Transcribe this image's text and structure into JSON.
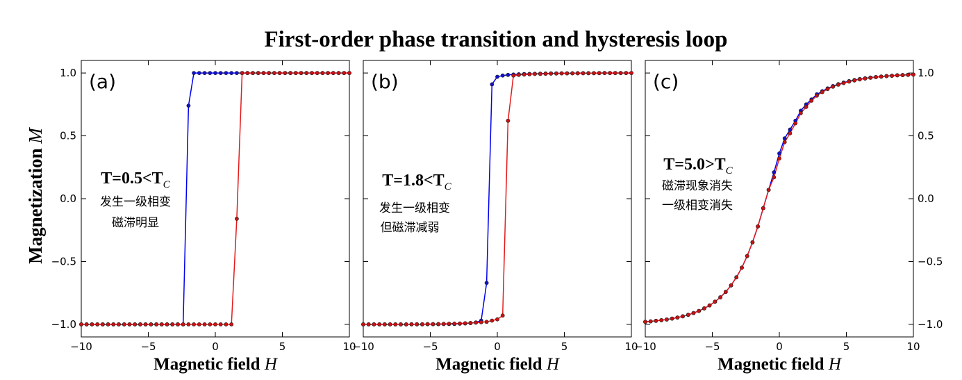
{
  "title": "First-order phase transition and hysteresis loop",
  "ylabel_text": "Magnetization ",
  "ylabel_var": "M",
  "xlabel_text": "Magnetic field ",
  "xlabel_var": "H",
  "colors": {
    "up": "#0000ee",
    "down": "#e31a1a",
    "marker_down": "#cc1111",
    "marker_up": "#1111cc"
  },
  "chart_data": [
    {
      "type": "line",
      "panel_label": "(a)",
      "temp_main": "T=0.5<T",
      "temp_sub": "C",
      "notes": [
        "发生一级相变",
        "磁滞明显"
      ],
      "xlim": [
        -10,
        10
      ],
      "ylim": [
        -1.1,
        1.1
      ],
      "xticks": [
        "−10",
        "−5",
        "0",
        "5",
        "10"
      ],
      "yticks": [
        "1.0",
        "0.5",
        "0.0",
        "−0.5",
        "−1.0"
      ],
      "ytick_side": "left",
      "series": [
        {
          "x": [
            -10,
            -9.6,
            -9.2,
            -8.8,
            -8.4,
            -8,
            -7.6,
            -7.2,
            -6.8,
            -6.4,
            -6,
            -5.6,
            -5.2,
            -4.8,
            -4.4,
            -4,
            -3.6,
            -3.2,
            -2.8,
            -2.4,
            -2,
            -1.6,
            -1.2,
            -0.8,
            -0.4,
            0,
            0.4,
            0.8,
            1.2,
            1.6,
            2,
            2.4,
            2.8,
            3.2,
            3.6,
            4,
            4.4,
            4.8,
            5.2,
            5.6,
            6,
            6.4,
            6.8,
            7.2,
            7.6,
            8,
            8.4,
            8.8,
            9.2,
            9.6,
            10
          ],
          "y": [
            -1,
            -1,
            -1,
            -1,
            -1,
            -1,
            -1,
            -1,
            -1,
            -1,
            -1,
            -1,
            -1,
            -1,
            -1,
            -1,
            -1,
            -1,
            -1,
            -1,
            0.74,
            1,
            1,
            1,
            1,
            1,
            1,
            1,
            1,
            1,
            1,
            1,
            1,
            1,
            1,
            1,
            1,
            1,
            1,
            1,
            1,
            1,
            1,
            1,
            1,
            1,
            1,
            1,
            1,
            1,
            1
          ]
        },
        {
          "x": [
            -10,
            -9.6,
            -9.2,
            -8.8,
            -8.4,
            -8,
            -7.6,
            -7.2,
            -6.8,
            -6.4,
            -6,
            -5.6,
            -5.2,
            -4.8,
            -4.4,
            -4,
            -3.6,
            -3.2,
            -2.8,
            -2.4,
            -2,
            -1.6,
            -1.2,
            -0.8,
            -0.4,
            0,
            0.4,
            0.8,
            1.2,
            1.6,
            2,
            2.4,
            2.8,
            3.2,
            3.6,
            4,
            4.4,
            4.8,
            5.2,
            5.6,
            6,
            6.4,
            6.8,
            7.2,
            7.6,
            8,
            8.4,
            8.8,
            9.2,
            9.6,
            10
          ],
          "y": [
            -1,
            -1,
            -1,
            -1,
            -1,
            -1,
            -1,
            -1,
            -1,
            -1,
            -1,
            -1,
            -1,
            -1,
            -1,
            -1,
            -1,
            -1,
            -1,
            -1,
            -1,
            -1,
            -1,
            -1,
            -1,
            -1,
            -1,
            -1,
            -1,
            -0.16,
            1,
            1,
            1,
            1,
            1,
            1,
            1,
            1,
            1,
            1,
            1,
            1,
            1,
            1,
            1,
            1,
            1,
            1,
            1,
            1,
            1
          ]
        }
      ]
    },
    {
      "type": "line",
      "panel_label": "(b)",
      "temp_main": "T=1.8<T",
      "temp_sub": "C",
      "notes": [
        "发生一级相变",
        "但磁滞减弱"
      ],
      "xlim": [
        -10,
        10
      ],
      "ylim": [
        -1.1,
        1.1
      ],
      "xticks": [
        "−10",
        "−5",
        "0",
        "5",
        "10"
      ],
      "yticks": [],
      "ytick_side": "none",
      "series": [
        {
          "x": [
            -10,
            -9.6,
            -9.2,
            -8.8,
            -8.4,
            -8,
            -7.6,
            -7.2,
            -6.8,
            -6.4,
            -6,
            -5.6,
            -5.2,
            -4.8,
            -4.4,
            -4,
            -3.6,
            -3.2,
            -2.8,
            -2.4,
            -2,
            -1.6,
            -1.2,
            -0.8,
            -0.4,
            0,
            0.4,
            0.8,
            1.2,
            1.6,
            2,
            2.4,
            2.8,
            3.2,
            3.6,
            4,
            4.4,
            4.8,
            5.2,
            5.6,
            6,
            6.4,
            6.8,
            7.2,
            7.6,
            8,
            8.4,
            8.8,
            9.2,
            9.6,
            10
          ],
          "y": [
            -1,
            -1,
            -1,
            -1,
            -1,
            -1,
            -1,
            -1,
            -1,
            -1,
            -1,
            -1,
            -0.999,
            -0.999,
            -0.999,
            -0.998,
            -0.998,
            -0.997,
            -0.995,
            -0.993,
            -0.99,
            -0.985,
            -0.97,
            -0.67,
            0.91,
            0.97,
            0.98,
            0.985,
            0.988,
            0.99,
            0.992,
            0.993,
            0.994,
            0.995,
            0.996,
            0.997,
            0.997,
            0.998,
            0.998,
            0.998,
            0.999,
            0.999,
            0.999,
            0.999,
            1,
            1,
            1,
            1,
            1,
            1,
            1
          ]
        },
        {
          "x": [
            -10,
            -9.6,
            -9.2,
            -8.8,
            -8.4,
            -8,
            -7.6,
            -7.2,
            -6.8,
            -6.4,
            -6,
            -5.6,
            -5.2,
            -4.8,
            -4.4,
            -4,
            -3.6,
            -3.2,
            -2.8,
            -2.4,
            -2,
            -1.6,
            -1.2,
            -0.8,
            -0.4,
            0,
            0.4,
            0.8,
            1.2,
            1.6,
            2,
            2.4,
            2.8,
            3.2,
            3.6,
            4,
            4.4,
            4.8,
            5.2,
            5.6,
            6,
            6.4,
            6.8,
            7.2,
            7.6,
            8,
            8.4,
            8.8,
            9.2,
            9.6,
            10
          ],
          "y": [
            -1,
            -1,
            -1,
            -1,
            -1,
            -1,
            -1,
            -1,
            -1,
            -0.999,
            -0.999,
            -0.999,
            -0.998,
            -0.998,
            -0.997,
            -0.996,
            -0.995,
            -0.994,
            -0.993,
            -0.991,
            -0.989,
            -0.986,
            -0.983,
            -0.98,
            -0.97,
            -0.96,
            -0.93,
            0.62,
            0.98,
            0.985,
            0.988,
            0.99,
            0.992,
            0.993,
            0.994,
            0.995,
            0.996,
            0.997,
            0.997,
            0.998,
            0.998,
            0.998,
            0.999,
            0.999,
            0.999,
            1,
            1,
            1,
            1,
            1,
            1
          ]
        }
      ]
    },
    {
      "type": "line",
      "panel_label": "(c)",
      "temp_main": "T=5.0>T",
      "temp_sub": "C",
      "notes": [
        "磁滞现象消失",
        "一级相变消失"
      ],
      "xlim": [
        -10,
        10
      ],
      "ylim": [
        -1.1,
        1.1
      ],
      "xticks": [
        "−10",
        "−5",
        "0",
        "5",
        "10"
      ],
      "yticks": [
        "1.0",
        "0.5",
        "0.0",
        "−0.5",
        "−1.0"
      ],
      "ytick_side": "right",
      "series": [
        {
          "x": [
            -10,
            -9.6,
            -9.2,
            -8.8,
            -8.4,
            -8,
            -7.6,
            -7.2,
            -6.8,
            -6.4,
            -6,
            -5.6,
            -5.2,
            -4.8,
            -4.4,
            -4,
            -3.6,
            -3.2,
            -2.8,
            -2.4,
            -2,
            -1.6,
            -1.2,
            -0.8,
            -0.4,
            0,
            0.4,
            0.8,
            1.2,
            1.6,
            2,
            2.4,
            2.8,
            3.2,
            3.6,
            4,
            4.4,
            4.8,
            5.2,
            5.6,
            6,
            6.4,
            6.8,
            7.2,
            7.6,
            8,
            8.4,
            8.8,
            9.2,
            9.6,
            10
          ],
          "y": [
            -0.98,
            -0.976,
            -0.972,
            -0.967,
            -0.961,
            -0.954,
            -0.946,
            -0.936,
            -0.924,
            -0.91,
            -0.893,
            -0.873,
            -0.849,
            -0.82,
            -0.785,
            -0.742,
            -0.69,
            -0.626,
            -0.549,
            -0.456,
            -0.347,
            -0.221,
            -0.076,
            0.07,
            0.21,
            0.36,
            0.48,
            0.55,
            0.62,
            0.7,
            0.75,
            0.79,
            0.83,
            0.855,
            0.877,
            0.896,
            0.911,
            0.924,
            0.935,
            0.944,
            0.952,
            0.958,
            0.964,
            0.968,
            0.972,
            0.976,
            0.979,
            0.982,
            0.984,
            0.986,
            0.988
          ]
        },
        {
          "x": [
            -10,
            -9.6,
            -9.2,
            -8.8,
            -8.4,
            -8,
            -7.6,
            -7.2,
            -6.8,
            -6.4,
            -6,
            -5.6,
            -5.2,
            -4.8,
            -4.4,
            -4,
            -3.6,
            -3.2,
            -2.8,
            -2.4,
            -2,
            -1.6,
            -1.2,
            -0.8,
            -0.4,
            0,
            0.4,
            0.8,
            1.2,
            1.6,
            2,
            2.4,
            2.8,
            3.2,
            3.6,
            4,
            4.4,
            4.8,
            5.2,
            5.6,
            6,
            6.4,
            6.8,
            7.2,
            7.6,
            8,
            8.4,
            8.8,
            9.2,
            9.6,
            10
          ],
          "y": [
            -0.98,
            -0.976,
            -0.972,
            -0.967,
            -0.961,
            -0.954,
            -0.946,
            -0.936,
            -0.924,
            -0.91,
            -0.893,
            -0.873,
            -0.849,
            -0.82,
            -0.785,
            -0.742,
            -0.69,
            -0.626,
            -0.549,
            -0.456,
            -0.347,
            -0.221,
            -0.076,
            0.07,
            0.17,
            0.32,
            0.45,
            0.52,
            0.6,
            0.68,
            0.73,
            0.78,
            0.82,
            0.848,
            0.872,
            0.891,
            0.907,
            0.92,
            0.932,
            0.941,
            0.949,
            0.956,
            0.962,
            0.967,
            0.971,
            0.975,
            0.978,
            0.981,
            0.983,
            0.985,
            0.987
          ]
        }
      ]
    }
  ]
}
